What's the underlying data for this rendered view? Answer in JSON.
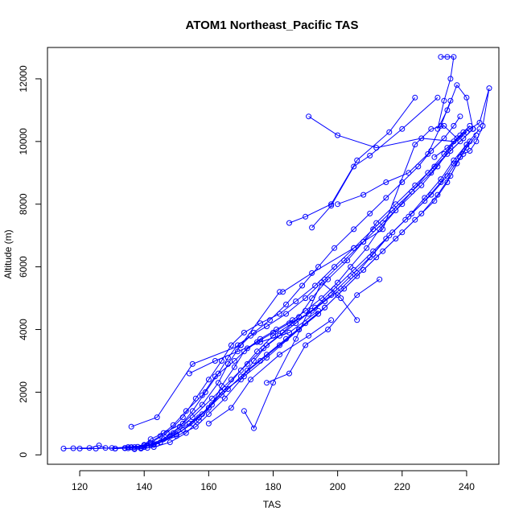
{
  "chart_data": {
    "type": "line",
    "title": "ATOM1 Northeast_Pacific TAS",
    "xlabel": "TAS",
    "ylabel": "Altitude (m)",
    "xlim": [
      110,
      250
    ],
    "ylim": [
      -300,
      13000
    ],
    "x_ticks": [
      120,
      140,
      160,
      180,
      200,
      220,
      240
    ],
    "y_ticks": [
      0,
      2000,
      4000,
      6000,
      8000,
      10000,
      12000
    ],
    "grid": false,
    "line_color": "#0000FF",
    "marker": "open-circle",
    "series": [
      {
        "x": [
          115,
          118,
          123,
          126,
          128,
          131,
          134,
          137,
          140,
          142,
          146,
          152,
          158,
          163,
          166,
          170,
          174,
          179,
          184,
          189,
          194,
          199,
          205,
          210,
          215,
          220,
          225,
          229,
          233,
          236,
          238
        ],
        "y": [
          200,
          210,
          220,
          300,
          220,
          200,
          210,
          250,
          320,
          500,
          700,
          1000,
          1600,
          2300,
          2900,
          3500,
          3900,
          4300,
          4800,
          5400,
          6000,
          6600,
          7200,
          7700,
          8200,
          8700,
          9200,
          9700,
          10100,
          10500,
          10800
        ]
      },
      {
        "x": [
          136,
          140,
          145,
          149,
          153,
          158,
          162,
          168,
          172,
          176,
          181,
          186,
          190,
          195,
          200,
          204,
          209,
          213,
          218,
          223,
          228,
          233,
          237,
          241
        ],
        "y": [
          250,
          300,
          600,
          950,
          1400,
          1900,
          2500,
          3000,
          3400,
          3700,
          4000,
          4300,
          4600,
          5000,
          5500,
          6000,
          6600,
          7200,
          7800,
          8400,
          9000,
          9600,
          10100,
          10500
        ]
      },
      {
        "x": [
          139,
          143,
          148,
          153,
          157,
          161,
          164,
          168,
          171,
          175,
          180,
          185,
          191,
          196,
          201,
          206,
          211,
          216,
          222,
          227,
          232,
          236,
          240,
          244
        ],
        "y": [
          200,
          250,
          400,
          700,
          1100,
          1600,
          2200,
          2800,
          3300,
          3600,
          3900,
          4200,
          4500,
          4900,
          5300,
          5800,
          6400,
          7000,
          7600,
          8200,
          8800,
          9400,
          9900,
          10400
        ]
      },
      {
        "x": [
          137,
          141,
          144,
          150,
          156,
          160,
          165,
          170,
          174,
          178,
          183,
          188,
          192,
          197,
          203,
          208,
          212,
          218,
          224,
          230,
          235,
          239,
          242
        ],
        "y": [
          180,
          220,
          350,
          600,
          900,
          1300,
          1800,
          2400,
          3000,
          3500,
          3900,
          4400,
          5000,
          5600,
          6200,
          6800,
          7400,
          8000,
          8600,
          9200,
          9700,
          10100,
          10400
        ]
      },
      {
        "x": [
          120,
          125,
          130,
          135,
          140,
          145,
          150,
          155,
          160,
          165,
          170,
          175,
          180,
          186,
          192,
          198,
          204,
          210,
          215,
          221,
          227,
          232,
          236,
          240
        ],
        "y": [
          200,
          200,
          220,
          250,
          300,
          400,
          650,
          1000,
          1500,
          2100,
          2700,
          3300,
          3800,
          4200,
          4600,
          5100,
          5700,
          6300,
          6900,
          7500,
          8100,
          8700,
          9300,
          9900
        ]
      },
      {
        "x": [
          134,
          138,
          142,
          147,
          152,
          156,
          160,
          164,
          167,
          171,
          176,
          182,
          187,
          193,
          199,
          205,
          211,
          217,
          223,
          229,
          234,
          238,
          242
        ],
        "y": [
          220,
          260,
          380,
          700,
          1200,
          1800,
          2400,
          3000,
          3500,
          3900,
          4200,
          4500,
          4900,
          5400,
          6000,
          6600,
          7200,
          7800,
          8400,
          9000,
          9600,
          10000,
          10400
        ]
      },
      {
        "x": [
          131,
          136,
          141,
          146,
          151,
          155,
          159,
          163,
          166,
          169,
          173,
          178,
          184,
          190,
          196,
          202,
          208,
          214,
          220,
          226,
          231,
          235,
          239
        ],
        "y": [
          200,
          240,
          300,
          500,
          900,
          1400,
          2000,
          2600,
          3100,
          3500,
          3800,
          4100,
          4500,
          5000,
          5600,
          6200,
          6800,
          7400,
          8000,
          8600,
          9200,
          9800,
          10300
        ]
      },
      {
        "x": [
          140,
          145,
          152,
          158,
          164,
          170,
          176,
          182,
          188,
          194,
          200,
          206,
          212,
          218,
          224,
          230,
          234,
          237,
          240,
          243
        ],
        "y": [
          250,
          400,
          800,
          1300,
          1900,
          2500,
          3000,
          3500,
          4000,
          4500,
          5100,
          5700,
          6300,
          6900,
          7500,
          8100,
          8700,
          9300,
          9800,
          10200
        ]
      },
      {
        "x": [
          135,
          139,
          143,
          148,
          154,
          160,
          166,
          172,
          178,
          184,
          190,
          196,
          202,
          208,
          214,
          220,
          226,
          231,
          235,
          238,
          241
        ],
        "y": [
          210,
          230,
          320,
          600,
          1000,
          1500,
          2100,
          2700,
          3200,
          3700,
          4200,
          4700,
          5300,
          5900,
          6500,
          7100,
          7700,
          8300,
          8900,
          9500,
          10000
        ]
      },
      {
        "x": [
          137,
          143,
          149,
          155,
          161,
          167,
          172,
          177,
          182,
          187,
          193,
          199,
          205,
          211,
          217,
          223,
          229,
          234,
          238
        ],
        "y": [
          200,
          350,
          700,
          1200,
          1800,
          2400,
          2900,
          3400,
          3800,
          4200,
          4700,
          5300,
          5900,
          6500,
          7100,
          7700,
          8300,
          8900,
          9500
        ]
      },
      {
        "x": [
          136,
          144,
          155,
          170,
          182
        ],
        "y": [
          900,
          1200,
          2900,
          3500,
          5200
        ]
      },
      {
        "x": [
          183,
          192,
          205,
          214,
          224,
          229,
          233,
          237
        ],
        "y": [
          5200,
          5800,
          6600,
          7200,
          9900,
          10400,
          10500,
          10100
        ]
      },
      {
        "x": [
          185,
          190,
          198,
          206,
          216,
          224
        ],
        "y": [
          7400,
          7600,
          8000,
          9400,
          10300,
          11400
        ]
      },
      {
        "x": [
          191,
          200,
          212,
          226,
          236,
          240
        ],
        "y": [
          10800,
          10200,
          9800,
          10100,
          10000,
          10300
        ]
      },
      {
        "x": [
          192,
          198,
          205,
          210,
          220,
          231
        ],
        "y": [
          7250,
          7950,
          9200,
          9550,
          10400,
          11400
        ]
      },
      {
        "x": [
          200,
          208,
          215,
          222,
          228,
          232,
          235
        ],
        "y": [
          8000,
          8300,
          8700,
          9000,
          9600,
          10500,
          11300
        ]
      },
      {
        "x": [
          232,
          234,
          236,
          235,
          233,
          231,
          234,
          237,
          240,
          242
        ],
        "y": [
          12700,
          12700,
          12700,
          12000,
          11300,
          10400,
          11000,
          11800,
          11400,
          10400
        ]
      },
      {
        "x": [
          230,
          234,
          238,
          241,
          244,
          247,
          245,
          243,
          241,
          239
        ],
        "y": [
          9500,
          9800,
          10200,
          10400,
          10600,
          11700,
          10500,
          10000,
          9700,
          9600
        ]
      },
      {
        "x": [
          171,
          174,
          180,
          187,
          195,
          201,
          206
        ],
        "y": [
          1400,
          850,
          2300,
          3700,
          5500,
          5000,
          4300
        ]
      },
      {
        "x": [
          178,
          185,
          190,
          197,
          206,
          213
        ],
        "y": [
          2300,
          2600,
          3500,
          4000,
          5100,
          5600
        ]
      },
      {
        "x": [
          160,
          167,
          173,
          182,
          191,
          198
        ],
        "y": [
          1000,
          1500,
          2400,
          3200,
          3800,
          4300
        ]
      },
      {
        "x": [
          157,
          164,
          171,
          178,
          188,
          196
        ],
        "y": [
          1200,
          2000,
          2500,
          3100,
          4000,
          4700
        ]
      },
      {
        "x": [
          154,
          162,
          169,
          176,
          185,
          194
        ],
        "y": [
          2600,
          3000,
          3300,
          3600,
          3900,
          4600
        ]
      }
    ]
  }
}
